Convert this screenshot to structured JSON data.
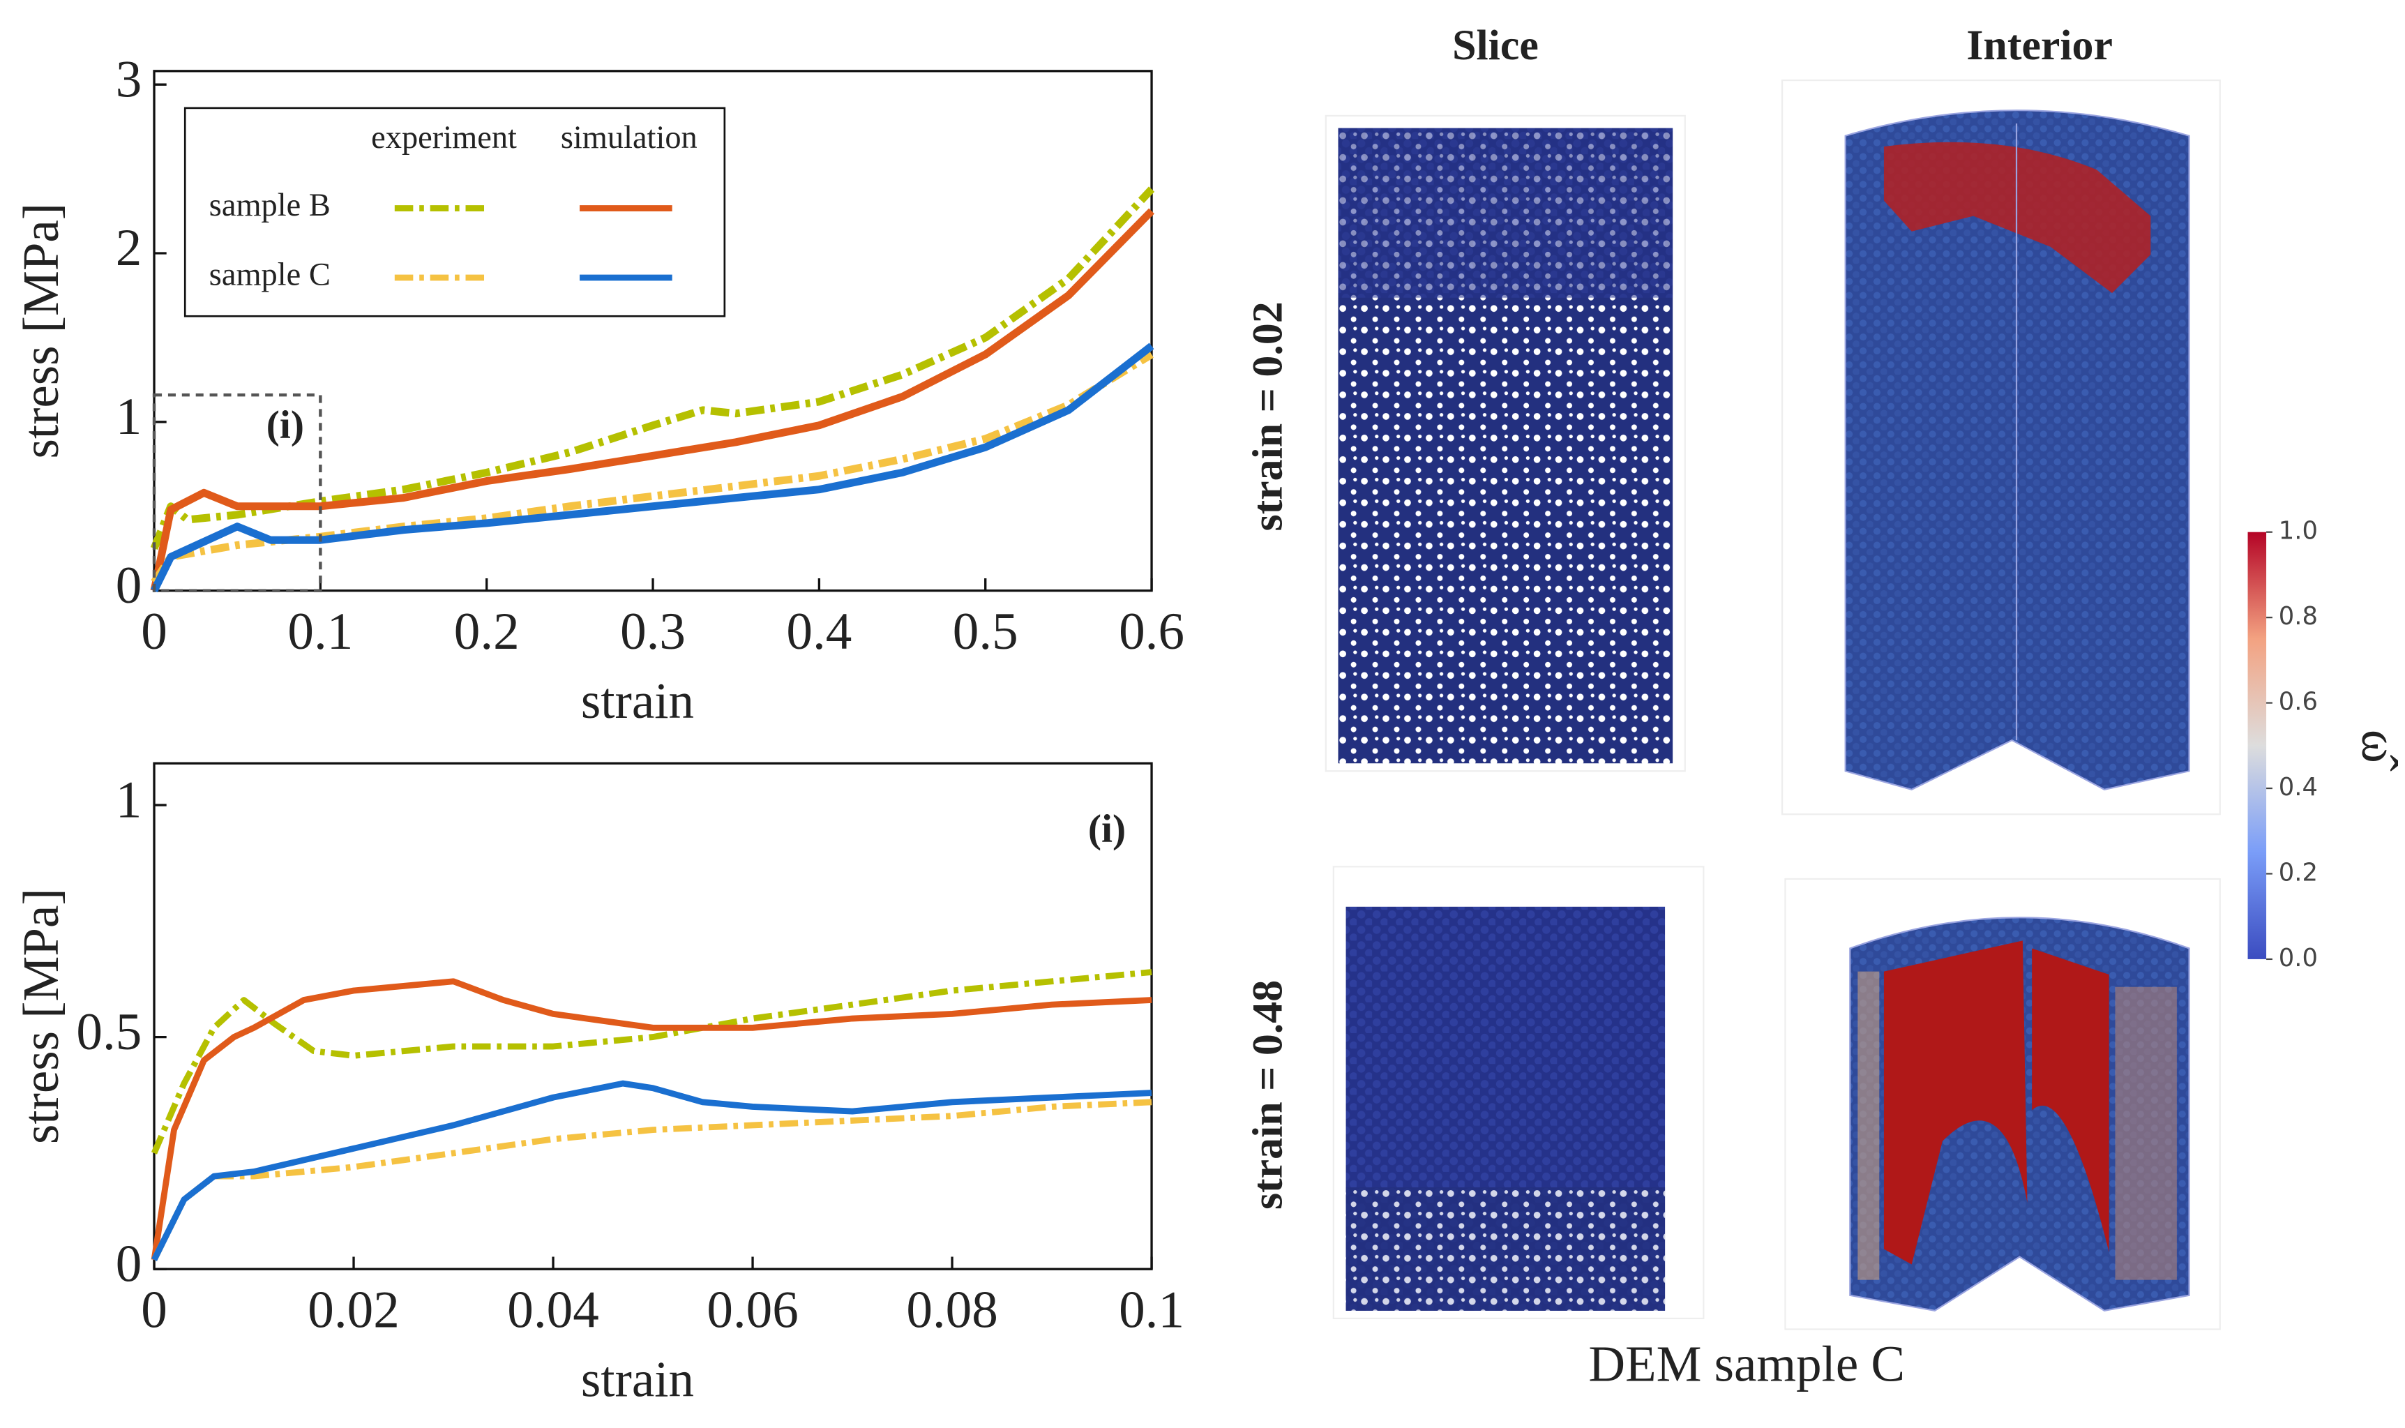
{
  "chart_data": [
    {
      "type": "line",
      "xlabel": "strain",
      "ylabel": "stress [MPa]",
      "annotation": "(i)",
      "xlim": [
        0,
        0.6
      ],
      "ylim": [
        0,
        3.08
      ],
      "xticks": [
        0,
        0.1,
        0.2,
        0.3,
        0.4,
        0.5,
        0.6
      ],
      "yticks": [
        0,
        1,
        2,
        3
      ],
      "inset_box": {
        "xlim": [
          0,
          0.1
        ],
        "ylim": [
          0,
          1.16
        ]
      },
      "legend": {
        "columns": [
          "experiment",
          "simulation"
        ],
        "rows": [
          "sample B",
          "sample C"
        ],
        "corner": "upper left"
      },
      "series": [
        {
          "name": "sample B",
          "source": "experiment",
          "color": "#b5c000",
          "x": [
            0,
            0.01,
            0.02,
            0.05,
            0.1,
            0.15,
            0.2,
            0.25,
            0.3,
            0.33,
            0.35,
            0.4,
            0.45,
            0.5,
            0.55,
            0.6
          ],
          "values": [
            0.25,
            0.5,
            0.42,
            0.45,
            0.53,
            0.6,
            0.7,
            0.82,
            0.98,
            1.07,
            1.05,
            1.12,
            1.28,
            1.5,
            1.85,
            2.38
          ]
        },
        {
          "name": "sample B",
          "source": "simulation",
          "color": "#e05a1a",
          "x": [
            0,
            0.01,
            0.03,
            0.05,
            0.1,
            0.15,
            0.2,
            0.25,
            0.3,
            0.35,
            0.4,
            0.45,
            0.5,
            0.55,
            0.6
          ],
          "values": [
            0,
            0.48,
            0.58,
            0.5,
            0.5,
            0.55,
            0.65,
            0.72,
            0.8,
            0.88,
            0.98,
            1.15,
            1.4,
            1.75,
            2.25
          ]
        },
        {
          "name": "sample C",
          "source": "experiment",
          "color": "#f5c242",
          "x": [
            0,
            0.01,
            0.05,
            0.1,
            0.15,
            0.2,
            0.25,
            0.3,
            0.35,
            0.4,
            0.45,
            0.5,
            0.55,
            0.6
          ],
          "values": [
            0.05,
            0.2,
            0.27,
            0.32,
            0.38,
            0.43,
            0.5,
            0.56,
            0.62,
            0.68,
            0.78,
            0.9,
            1.1,
            1.4
          ]
        },
        {
          "name": "sample C",
          "source": "simulation",
          "color": "#1a6fd0",
          "x": [
            0,
            0.01,
            0.05,
            0.07,
            0.1,
            0.15,
            0.2,
            0.25,
            0.3,
            0.35,
            0.4,
            0.45,
            0.5,
            0.55,
            0.6
          ],
          "values": [
            0,
            0.2,
            0.38,
            0.3,
            0.3,
            0.36,
            0.4,
            0.45,
            0.5,
            0.55,
            0.6,
            0.7,
            0.85,
            1.07,
            1.45
          ]
        }
      ]
    },
    {
      "type": "line",
      "xlabel": "strain",
      "ylabel": "stress [MPa]",
      "annotation": "(i)",
      "xlim": [
        0,
        0.1
      ],
      "ylim": [
        0,
        1.09
      ],
      "xticks": [
        0,
        0.02,
        0.04,
        0.06,
        0.08,
        0.1
      ],
      "yticks": [
        0,
        0.5,
        1
      ],
      "series": [
        {
          "color": "#b5c000",
          "dashed": true,
          "x": [
            0,
            0.003,
            0.006,
            0.009,
            0.012,
            0.016,
            0.02,
            0.03,
            0.04,
            0.05,
            0.06,
            0.07,
            0.08,
            0.09,
            0.1
          ],
          "values": [
            0.25,
            0.4,
            0.52,
            0.58,
            0.53,
            0.47,
            0.46,
            0.48,
            0.48,
            0.5,
            0.54,
            0.57,
            0.6,
            0.62,
            0.64
          ]
        },
        {
          "color": "#e05a1a",
          "dashed": false,
          "x": [
            0,
            0.002,
            0.005,
            0.008,
            0.01,
            0.015,
            0.02,
            0.03,
            0.035,
            0.04,
            0.05,
            0.06,
            0.07,
            0.08,
            0.09,
            0.1
          ],
          "values": [
            0.02,
            0.3,
            0.45,
            0.5,
            0.52,
            0.58,
            0.6,
            0.62,
            0.58,
            0.55,
            0.52,
            0.52,
            0.54,
            0.55,
            0.57,
            0.58
          ]
        },
        {
          "color": "#f5c242",
          "dashed": true,
          "x": [
            0,
            0.003,
            0.006,
            0.01,
            0.02,
            0.03,
            0.04,
            0.05,
            0.06,
            0.07,
            0.08,
            0.09,
            0.1
          ],
          "values": [
            0.02,
            0.15,
            0.2,
            0.2,
            0.22,
            0.25,
            0.28,
            0.3,
            0.31,
            0.32,
            0.33,
            0.35,
            0.36
          ]
        },
        {
          "color": "#1a6fd0",
          "dashed": false,
          "x": [
            0,
            0.003,
            0.006,
            0.01,
            0.02,
            0.03,
            0.04,
            0.047,
            0.05,
            0.055,
            0.06,
            0.07,
            0.08,
            0.09,
            0.1
          ],
          "values": [
            0.02,
            0.15,
            0.2,
            0.21,
            0.26,
            0.31,
            0.37,
            0.4,
            0.39,
            0.36,
            0.35,
            0.34,
            0.36,
            0.37,
            0.38
          ]
        }
      ]
    }
  ],
  "figure_panel": {
    "columns": [
      "Slice",
      "Interior"
    ],
    "rows": [
      "strain = 0.02",
      "strain = 0.48"
    ],
    "caption": "DEM sample C",
    "colorbar": {
      "label": "ω̂",
      "lim": [
        0,
        1
      ],
      "ticks": [
        {
          "value": 0,
          "label": "0.0"
        },
        {
          "value": 0.2,
          "label": "0.2"
        },
        {
          "value": 0.4,
          "label": "0.4"
        },
        {
          "value": 0.6,
          "label": "0.6"
        },
        {
          "value": 0.8,
          "label": "0.8"
        },
        {
          "value": 1,
          "label": "1.0"
        }
      ]
    }
  }
}
